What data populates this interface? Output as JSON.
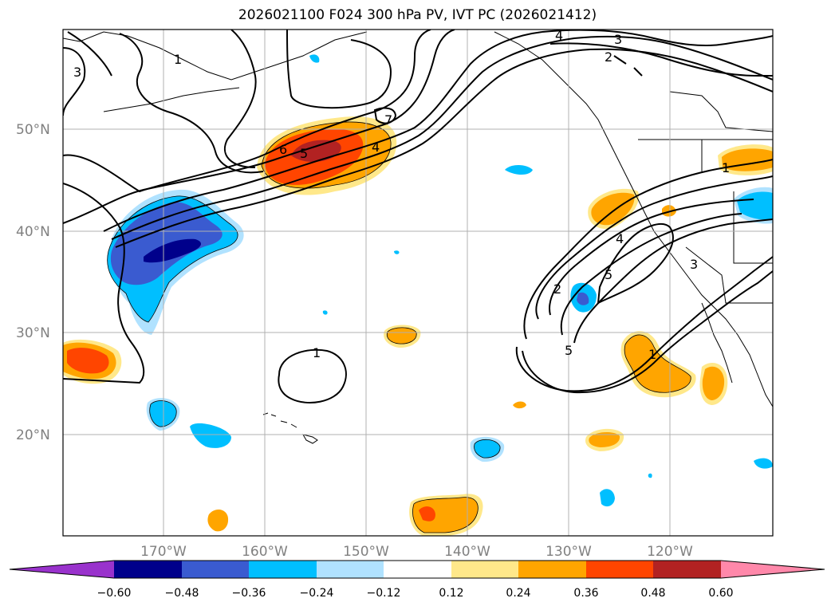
{
  "title": "2026021100 F024 300 hPa PV, IVT PC (2026021412)",
  "latitude_labels": [
    "50°N",
    "40°N",
    "30°N",
    "20°N"
  ],
  "longitude_labels": [
    "170°W",
    "160°W",
    "150°W",
    "140°W",
    "130°W",
    "120°W"
  ],
  "contour_labels": [
    "1",
    "3",
    "4",
    "3",
    "2",
    "6",
    "5",
    "4",
    "7",
    "1",
    "2",
    "4",
    "5",
    "3",
    "5",
    "1",
    "1"
  ],
  "colorbar": {
    "ticks": [
      "−0.60",
      "−0.48",
      "−0.36",
      "−0.24",
      "−0.12",
      "0.12",
      "0.24",
      "0.36",
      "0.48",
      "0.60"
    ],
    "colors": [
      "#9932cc",
      "#00008b",
      "#3a5bd0",
      "#00bfff",
      "#b0e2ff",
      "#ffffff",
      "#ffe88a",
      "#ffa500",
      "#ff4500",
      "#b22222",
      "#ff88aa"
    ]
  }
}
